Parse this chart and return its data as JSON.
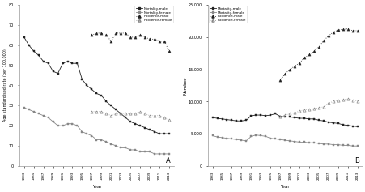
{
  "years": [
    1983,
    1984,
    1985,
    1986,
    1987,
    1988,
    1989,
    1990,
    1991,
    1992,
    1993,
    1994,
    1995,
    1996,
    1997,
    1998,
    1999,
    2000,
    2001,
    2002,
    2003,
    2004,
    2005,
    2006,
    2007,
    2008,
    2009,
    2010,
    2011,
    2012,
    2013
  ],
  "A_mortality_male": [
    64,
    60,
    57,
    55,
    52,
    51,
    47,
    46,
    51,
    52,
    51,
    51,
    43,
    40,
    38,
    36,
    35,
    32,
    30,
    28,
    26,
    24,
    22,
    21,
    20,
    19,
    18,
    17,
    16,
    16,
    16
  ],
  "A_mortality_female": [
    29,
    28,
    27,
    26,
    25,
    24,
    22,
    20,
    20,
    21,
    21,
    20,
    17,
    16,
    15,
    13,
    13,
    12,
    11,
    10,
    9,
    9,
    8,
    8,
    7,
    7,
    7,
    6,
    6,
    6,
    6
  ],
  "A_incidence_male": [
    null,
    null,
    null,
    null,
    null,
    null,
    null,
    null,
    null,
    null,
    null,
    null,
    null,
    null,
    65,
    66,
    66,
    65,
    62,
    66,
    66,
    66,
    64,
    64,
    65,
    64,
    63,
    63,
    62,
    62,
    57
  ],
  "A_incidence_female": [
    null,
    null,
    null,
    null,
    null,
    null,
    null,
    null,
    null,
    null,
    null,
    null,
    null,
    null,
    27,
    27,
    27,
    26,
    25,
    26,
    26,
    26,
    26,
    26,
    27,
    26,
    25,
    25,
    25,
    24,
    23
  ],
  "B_mortality_male": [
    7500,
    7400,
    7300,
    7200,
    7100,
    7000,
    7000,
    7100,
    7800,
    7900,
    7900,
    7800,
    7900,
    8100,
    7700,
    7600,
    7600,
    7500,
    7400,
    7400,
    7300,
    7300,
    7100,
    7000,
    6800,
    6700,
    6600,
    6400,
    6300,
    6200,
    6100
  ],
  "B_mortality_female": [
    4700,
    4500,
    4400,
    4300,
    4200,
    4100,
    4000,
    3900,
    4600,
    4800,
    4700,
    4600,
    4300,
    4200,
    4100,
    4000,
    3900,
    3800,
    3700,
    3700,
    3600,
    3600,
    3500,
    3400,
    3400,
    3300,
    3300,
    3200,
    3200,
    3100,
    3100
  ],
  "B_incidence_male": [
    null,
    null,
    null,
    null,
    null,
    null,
    null,
    null,
    null,
    null,
    null,
    null,
    null,
    null,
    13300,
    14300,
    15000,
    15500,
    16000,
    16800,
    17300,
    17800,
    18500,
    19500,
    20200,
    20800,
    21100,
    21200,
    21300,
    21000,
    21000
  ],
  "B_incidence_female": [
    null,
    null,
    null,
    null,
    null,
    null,
    null,
    null,
    null,
    null,
    null,
    null,
    null,
    null,
    7600,
    7900,
    8100,
    8300,
    8500,
    8700,
    8800,
    8900,
    9000,
    9200,
    9800,
    10000,
    10200,
    10300,
    10400,
    10200,
    10100
  ],
  "A_ylabel": "Age standardised rate (per 100,000)",
  "A_ylim": [
    0,
    80
  ],
  "A_yticks": [
    0,
    10,
    20,
    30,
    40,
    50,
    60,
    70,
    80
  ],
  "B_ylabel": "Number",
  "B_ylim": [
    0,
    25000
  ],
  "B_yticks": [
    0,
    5000,
    10000,
    15000,
    20000,
    25000
  ],
  "xlabel": "Year",
  "label_A": "A",
  "label_B": "B",
  "xtick_years": [
    1983,
    1985,
    1987,
    1989,
    1991,
    1993,
    1995,
    1997,
    1999,
    2001,
    2003,
    2005,
    2007,
    2009,
    2011,
    2013
  ]
}
